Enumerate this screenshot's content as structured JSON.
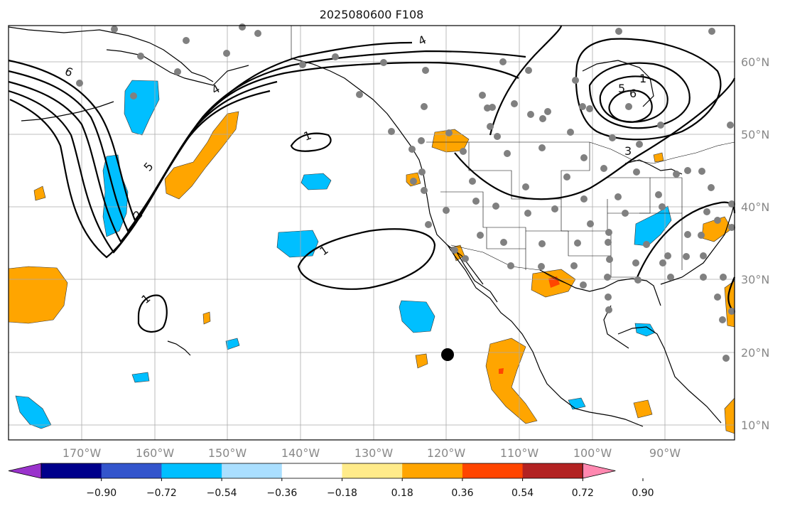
{
  "title": "2025080600 F108",
  "map": {
    "lon_ticks": [
      "170°W",
      "160°W",
      "150°W",
      "140°W",
      "130°W",
      "120°W",
      "110°W",
      "100°W",
      "90°W"
    ],
    "lat_ticks": [
      "60°N",
      "50°N",
      "40°N",
      "30°N",
      "20°N",
      "10°N"
    ],
    "contour_labels": [
      "6",
      "4",
      "5",
      "2",
      "1",
      "1",
      "1",
      "4",
      "5",
      "6",
      "3",
      "1"
    ],
    "gridlines": true
  },
  "colorbar": {
    "ticks": [
      "−0.90",
      "−0.72",
      "−0.54",
      "−0.36",
      "−0.18",
      "0.18",
      "0.36",
      "0.54",
      "0.72",
      "0.90"
    ],
    "colors": [
      "#9a33cc",
      "#00008b",
      "#3355cc",
      "#00bfff",
      "#aadfff",
      "#ffffff",
      "#ffeb8a",
      "#ffa500",
      "#ff4500",
      "#b22222",
      "#ff88b0"
    ],
    "extend": "both"
  },
  "colors": {
    "neg_fill": "#00bfff",
    "pos_fill": "#ffa500",
    "pos_strong": "#ff4500",
    "station": "#808080",
    "contour": "#000000"
  }
}
